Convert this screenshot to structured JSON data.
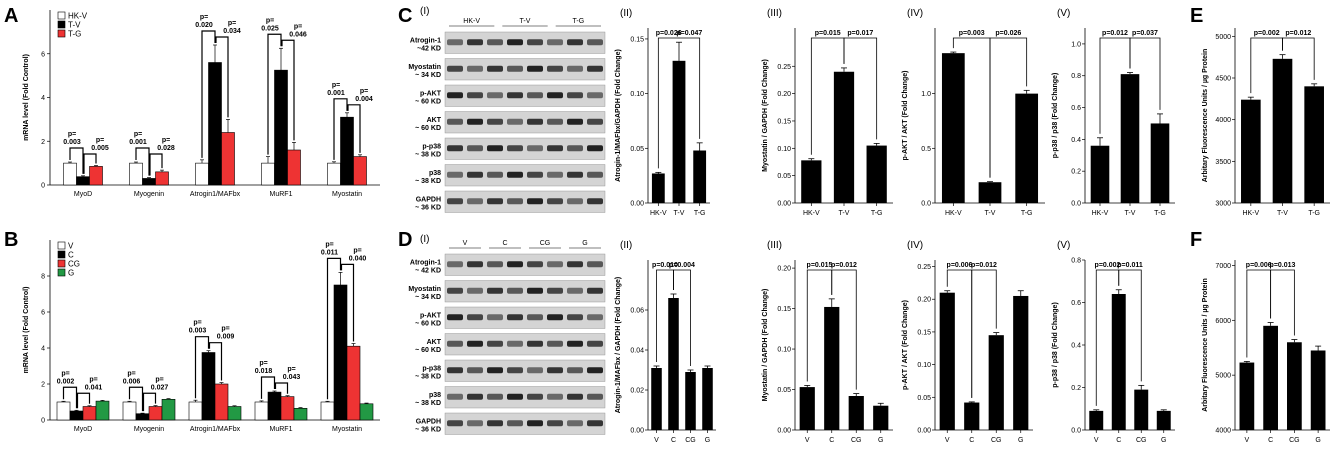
{
  "panels": {
    "A": "A",
    "B": "B",
    "C": "C",
    "D": "D",
    "E": "E",
    "F": "F"
  },
  "colors": {
    "white": "#ffffff",
    "black": "#000000",
    "red": "#ee3333",
    "green": "#229944",
    "blot_bg": "#c8c8c8",
    "band": "#1a1a1a"
  },
  "western": {
    "C": {
      "panel_label": "(I)",
      "groups": [
        "HK-V",
        "T-V",
        "T-G"
      ],
      "rows": [
        "Atrogin-1\n~42 KD",
        "Myostatin\n~ 34 KD",
        "p-AKT\n~ 60 KD",
        "AKT\n~ 60 KD",
        "p-p38\n~ 38 KD",
        "p38\n~ 38 KD",
        "GAPDH\n~ 36 KD"
      ]
    },
    "D": {
      "panel_label": "(I)",
      "groups": [
        "V",
        "C",
        "CG",
        "G"
      ],
      "rows": [
        "Atrogin-1\n~ 42 KD",
        "Myostatin\n~ 34 KD",
        "p-AKT\n~ 60 KD",
        "AKT\n~ 60 KD",
        "p-p38\n~ 38 KD",
        "p38\n~ 38 KD",
        "GAPDH\n~ 36 KD"
      ]
    }
  },
  "chart_data": [
    {
      "id": "A",
      "type": "bar",
      "ylabel": "mRNA level (Fold Control)",
      "ylim": [
        0,
        8
      ],
      "yticks": [
        0,
        2,
        4,
        6
      ],
      "categories": [
        "MyoD",
        "Myogenin",
        "Atrogin1/MAFbx",
        "MuRF1",
        "Myostatin"
      ],
      "legend": {
        "placement": "top-left"
      },
      "series": [
        {
          "name": "HK-V",
          "color": "#ffffff",
          "values": [
            1.0,
            1.0,
            1.0,
            1.0,
            1.0
          ],
          "err": [
            0.05,
            0.05,
            0.15,
            0.3,
            0.06
          ]
        },
        {
          "name": "T-V",
          "color": "#000000",
          "values": [
            0.38,
            0.3,
            5.6,
            5.25,
            3.1
          ],
          "err": [
            0.04,
            0.04,
            0.8,
            1.0,
            0.2
          ]
        },
        {
          "name": "T-G",
          "color": "#ee3333",
          "values": [
            0.85,
            0.6,
            2.4,
            1.6,
            1.3
          ],
          "err": [
            0.04,
            0.08,
            0.6,
            0.35,
            0.08
          ]
        }
      ],
      "pvals": [
        {
          "cat": 0,
          "left": "p=\n0.003",
          "right": "p=\n0.005"
        },
        {
          "cat": 1,
          "left": "p=\n0.001",
          "right": "p=\n0.028"
        },
        {
          "cat": 2,
          "left": "p=\n0.020",
          "right": "p=\n0.034"
        },
        {
          "cat": 3,
          "left": "p=\n0.025",
          "right": "p=\n0.046"
        },
        {
          "cat": 4,
          "left": "p=\n0.001",
          "right": "p=\n0.004"
        }
      ]
    },
    {
      "id": "B",
      "type": "bar",
      "ylabel": "mRNA level (Fold Control)",
      "ylim": [
        0,
        10
      ],
      "yticks": [
        0,
        2,
        4,
        6,
        8
      ],
      "categories": [
        "MyoD",
        "Myogenin",
        "Atrogin1/MAFbx",
        "MuRF1",
        "Myostatin"
      ],
      "legend": {
        "placement": "top-left"
      },
      "series": [
        {
          "name": "V",
          "color": "#ffffff",
          "values": [
            1.0,
            1.0,
            1.0,
            1.0,
            1.0
          ],
          "err": [
            0.04,
            0.04,
            0.1,
            0.06,
            0.04
          ]
        },
        {
          "name": "C",
          "color": "#000000",
          "values": [
            0.5,
            0.35,
            3.75,
            1.55,
            7.5
          ],
          "err": [
            0.04,
            0.03,
            0.1,
            0.06,
            0.7
          ]
        },
        {
          "name": "CG",
          "color": "#ee3333",
          "values": [
            0.75,
            0.75,
            2.0,
            1.3,
            4.1
          ],
          "err": [
            0.04,
            0.05,
            0.08,
            0.05,
            0.15
          ]
        },
        {
          "name": "G",
          "color": "#229944",
          "values": [
            1.05,
            1.15,
            0.75,
            0.65,
            0.9
          ],
          "err": [
            0.04,
            0.04,
            0.04,
            0.04,
            0.04
          ]
        }
      ],
      "pvals": [
        {
          "cat": 0,
          "left": "p=\n0.002",
          "right": "p=\n0.041"
        },
        {
          "cat": 1,
          "left": "p=\n0.006",
          "right": "p=\n0.027"
        },
        {
          "cat": 2,
          "left": "p=\n0.003",
          "right": "p=\n0.009"
        },
        {
          "cat": 3,
          "left": "p=\n0.018",
          "right": "p=\n0.043"
        },
        {
          "cat": 4,
          "left": "p=\n0.011",
          "right": "p=\n0.040"
        }
      ]
    },
    {
      "id": "C-II",
      "type": "bar",
      "panel_label": "(II)",
      "ylabel": "Atrogin-1/MAFbx/GAPDH (Fold Change)",
      "categories": [
        "HK-V",
        "T-V",
        "T-G"
      ],
      "values": [
        0.027,
        0.13,
        0.048
      ],
      "err": [
        0.001,
        0.017,
        0.007
      ],
      "ylim": [
        0,
        0.16
      ],
      "yticks": [
        "0.00",
        "0.05",
        "0.10",
        "0.15"
      ],
      "ytick_values": [
        0,
        0.05,
        0.1,
        0.15
      ],
      "pvals": [
        "p=0.026",
        "p=0.047"
      ]
    },
    {
      "id": "C-III",
      "type": "bar",
      "panel_label": "(III)",
      "ylabel": "Myostatin / GAPDH (Fold Change)",
      "categories": [
        "HK-V",
        "T-V",
        "T-G"
      ],
      "values": [
        0.078,
        0.24,
        0.105
      ],
      "err": [
        0.003,
        0.007,
        0.004
      ],
      "ylim": [
        0,
        0.32
      ],
      "yticks": [
        "0.00",
        "0.05",
        "0.10",
        "0.15",
        "0.20",
        "0.25"
      ],
      "ytick_values": [
        0,
        0.05,
        0.1,
        0.15,
        0.2,
        0.25
      ],
      "pvals": [
        "p=0.015",
        "p=0.017"
      ]
    },
    {
      "id": "C-IV",
      "type": "bar",
      "panel_label": "(IV)",
      "ylabel": "p-AKT / AKT (Fold Change)",
      "categories": [
        "HK-V",
        "T-V",
        "T-G"
      ],
      "values": [
        1.37,
        0.19,
        1.0
      ],
      "err": [
        0.01,
        0.005,
        0.03
      ],
      "ylim": [
        0,
        1.6
      ],
      "yticks": [
        "0.0",
        "0.5",
        "1.0"
      ],
      "ytick_values": [
        0,
        0.5,
        1.0
      ],
      "pvals": [
        "p=0.003",
        "p=0.026"
      ]
    },
    {
      "id": "C-V",
      "type": "bar",
      "panel_label": "(V)",
      "ylabel": "p-p38 / p38 (Fold Change)",
      "categories": [
        "HK-V",
        "T-V",
        "T-G"
      ],
      "values": [
        0.36,
        0.81,
        0.5
      ],
      "err": [
        0.05,
        0.01,
        0.06
      ],
      "ylim": [
        0,
        1.1
      ],
      "yticks": [
        "0.0",
        "0.2",
        "0.4",
        "0.6",
        "0.8",
        "1.0"
      ],
      "ytick_values": [
        0,
        0.2,
        0.4,
        0.6,
        0.8,
        1.0
      ],
      "pvals": [
        "p=0.012",
        "p=0.037"
      ]
    },
    {
      "id": "E",
      "type": "bar",
      "ylabel": "Arbitary Fluorescence Units / µg Protein",
      "categories": [
        "HK-V",
        "T-V",
        "T-G"
      ],
      "values": [
        4240,
        4730,
        4400
      ],
      "err": [
        30,
        50,
        30
      ],
      "ylim": [
        3000,
        5100
      ],
      "yticks": [
        "3000",
        "3500",
        "4000",
        "4500",
        "5000"
      ],
      "ytick_values": [
        3000,
        3500,
        4000,
        4500,
        5000
      ],
      "pvals": [
        "p=0.002",
        "p=0.012"
      ]
    },
    {
      "id": "D-II",
      "type": "bar",
      "panel_label": "(II)",
      "ylabel": "Atrogin-1/MAFbx / GAPDH (Fold Change)",
      "categories": [
        "V",
        "C",
        "CG",
        "G"
      ],
      "values": [
        0.031,
        0.066,
        0.029,
        0.031
      ],
      "err": [
        0.001,
        0.002,
        0.001,
        0.001
      ],
      "ylim": [
        0,
        0.085
      ],
      "yticks": [
        "0.00",
        "0.02",
        "0.04",
        "0.06"
      ],
      "ytick_values": [
        0,
        0.02,
        0.04,
        0.06
      ],
      "pvals": [
        "p=0.010",
        "p=0.004"
      ]
    },
    {
      "id": "D-III",
      "type": "bar",
      "panel_label": "(III)",
      "ylabel": "Myostatin / GAPDH (Fold Change)",
      "categories": [
        "V",
        "C",
        "CG",
        "G"
      ],
      "values": [
        0.053,
        0.152,
        0.042,
        0.03
      ],
      "err": [
        0.002,
        0.01,
        0.003,
        0.003
      ],
      "ylim": [
        0,
        0.21
      ],
      "yticks": [
        "0.00",
        "0.05",
        "0.10",
        "0.15",
        "0.20"
      ],
      "ytick_values": [
        0,
        0.05,
        0.1,
        0.15,
        0.2
      ],
      "pvals": [
        "p=0.015",
        "p=0.012"
      ]
    },
    {
      "id": "D-IV",
      "type": "bar",
      "panel_label": "(IV)",
      "ylabel": "p-AKT / AKT (Fold Change)",
      "categories": [
        "V",
        "C",
        "CG",
        "G"
      ],
      "values": [
        0.21,
        0.042,
        0.145,
        0.205
      ],
      "err": [
        0.003,
        0.001,
        0.004,
        0.008
      ],
      "ylim": [
        0,
        0.26
      ],
      "yticks": [
        "0.00",
        "0.05",
        "0.10",
        "0.15",
        "0.20",
        "0.25"
      ],
      "ytick_values": [
        0,
        0.05,
        0.1,
        0.15,
        0.2,
        0.25
      ],
      "pvals": [
        "p=0.006",
        "p=0.012"
      ]
    },
    {
      "id": "D-V",
      "type": "bar",
      "panel_label": "(V)",
      "ylabel": "p-p38 / p38 (Fold Change)",
      "categories": [
        "V",
        "C",
        "CG",
        "G"
      ],
      "values": [
        0.09,
        0.64,
        0.19,
        0.09
      ],
      "err": [
        0.005,
        0.02,
        0.02,
        0.005
      ],
      "ylim": [
        0,
        0.8
      ],
      "yticks": [
        "0.0",
        "0.2",
        "0.4",
        "0.6",
        "0.8"
      ],
      "ytick_values": [
        0,
        0.2,
        0.4,
        0.6,
        0.8
      ],
      "pvals": [
        "p=0.002",
        "p=0.011"
      ]
    },
    {
      "id": "F",
      "type": "bar",
      "ylabel": "Arbitary Fluorescence Units / µg Protein",
      "categories": [
        "V",
        "C",
        "CG",
        "G"
      ],
      "values": [
        5230,
        5900,
        5600,
        5450
      ],
      "err": [
        20,
        60,
        50,
        80
      ],
      "ylim": [
        4000,
        7100
      ],
      "yticks": [
        "4000",
        "5000",
        "6000",
        "7000"
      ],
      "ytick_values": [
        4000,
        5000,
        6000,
        7000
      ],
      "pvals": [
        "p=0.006",
        "p=0.013"
      ]
    }
  ]
}
